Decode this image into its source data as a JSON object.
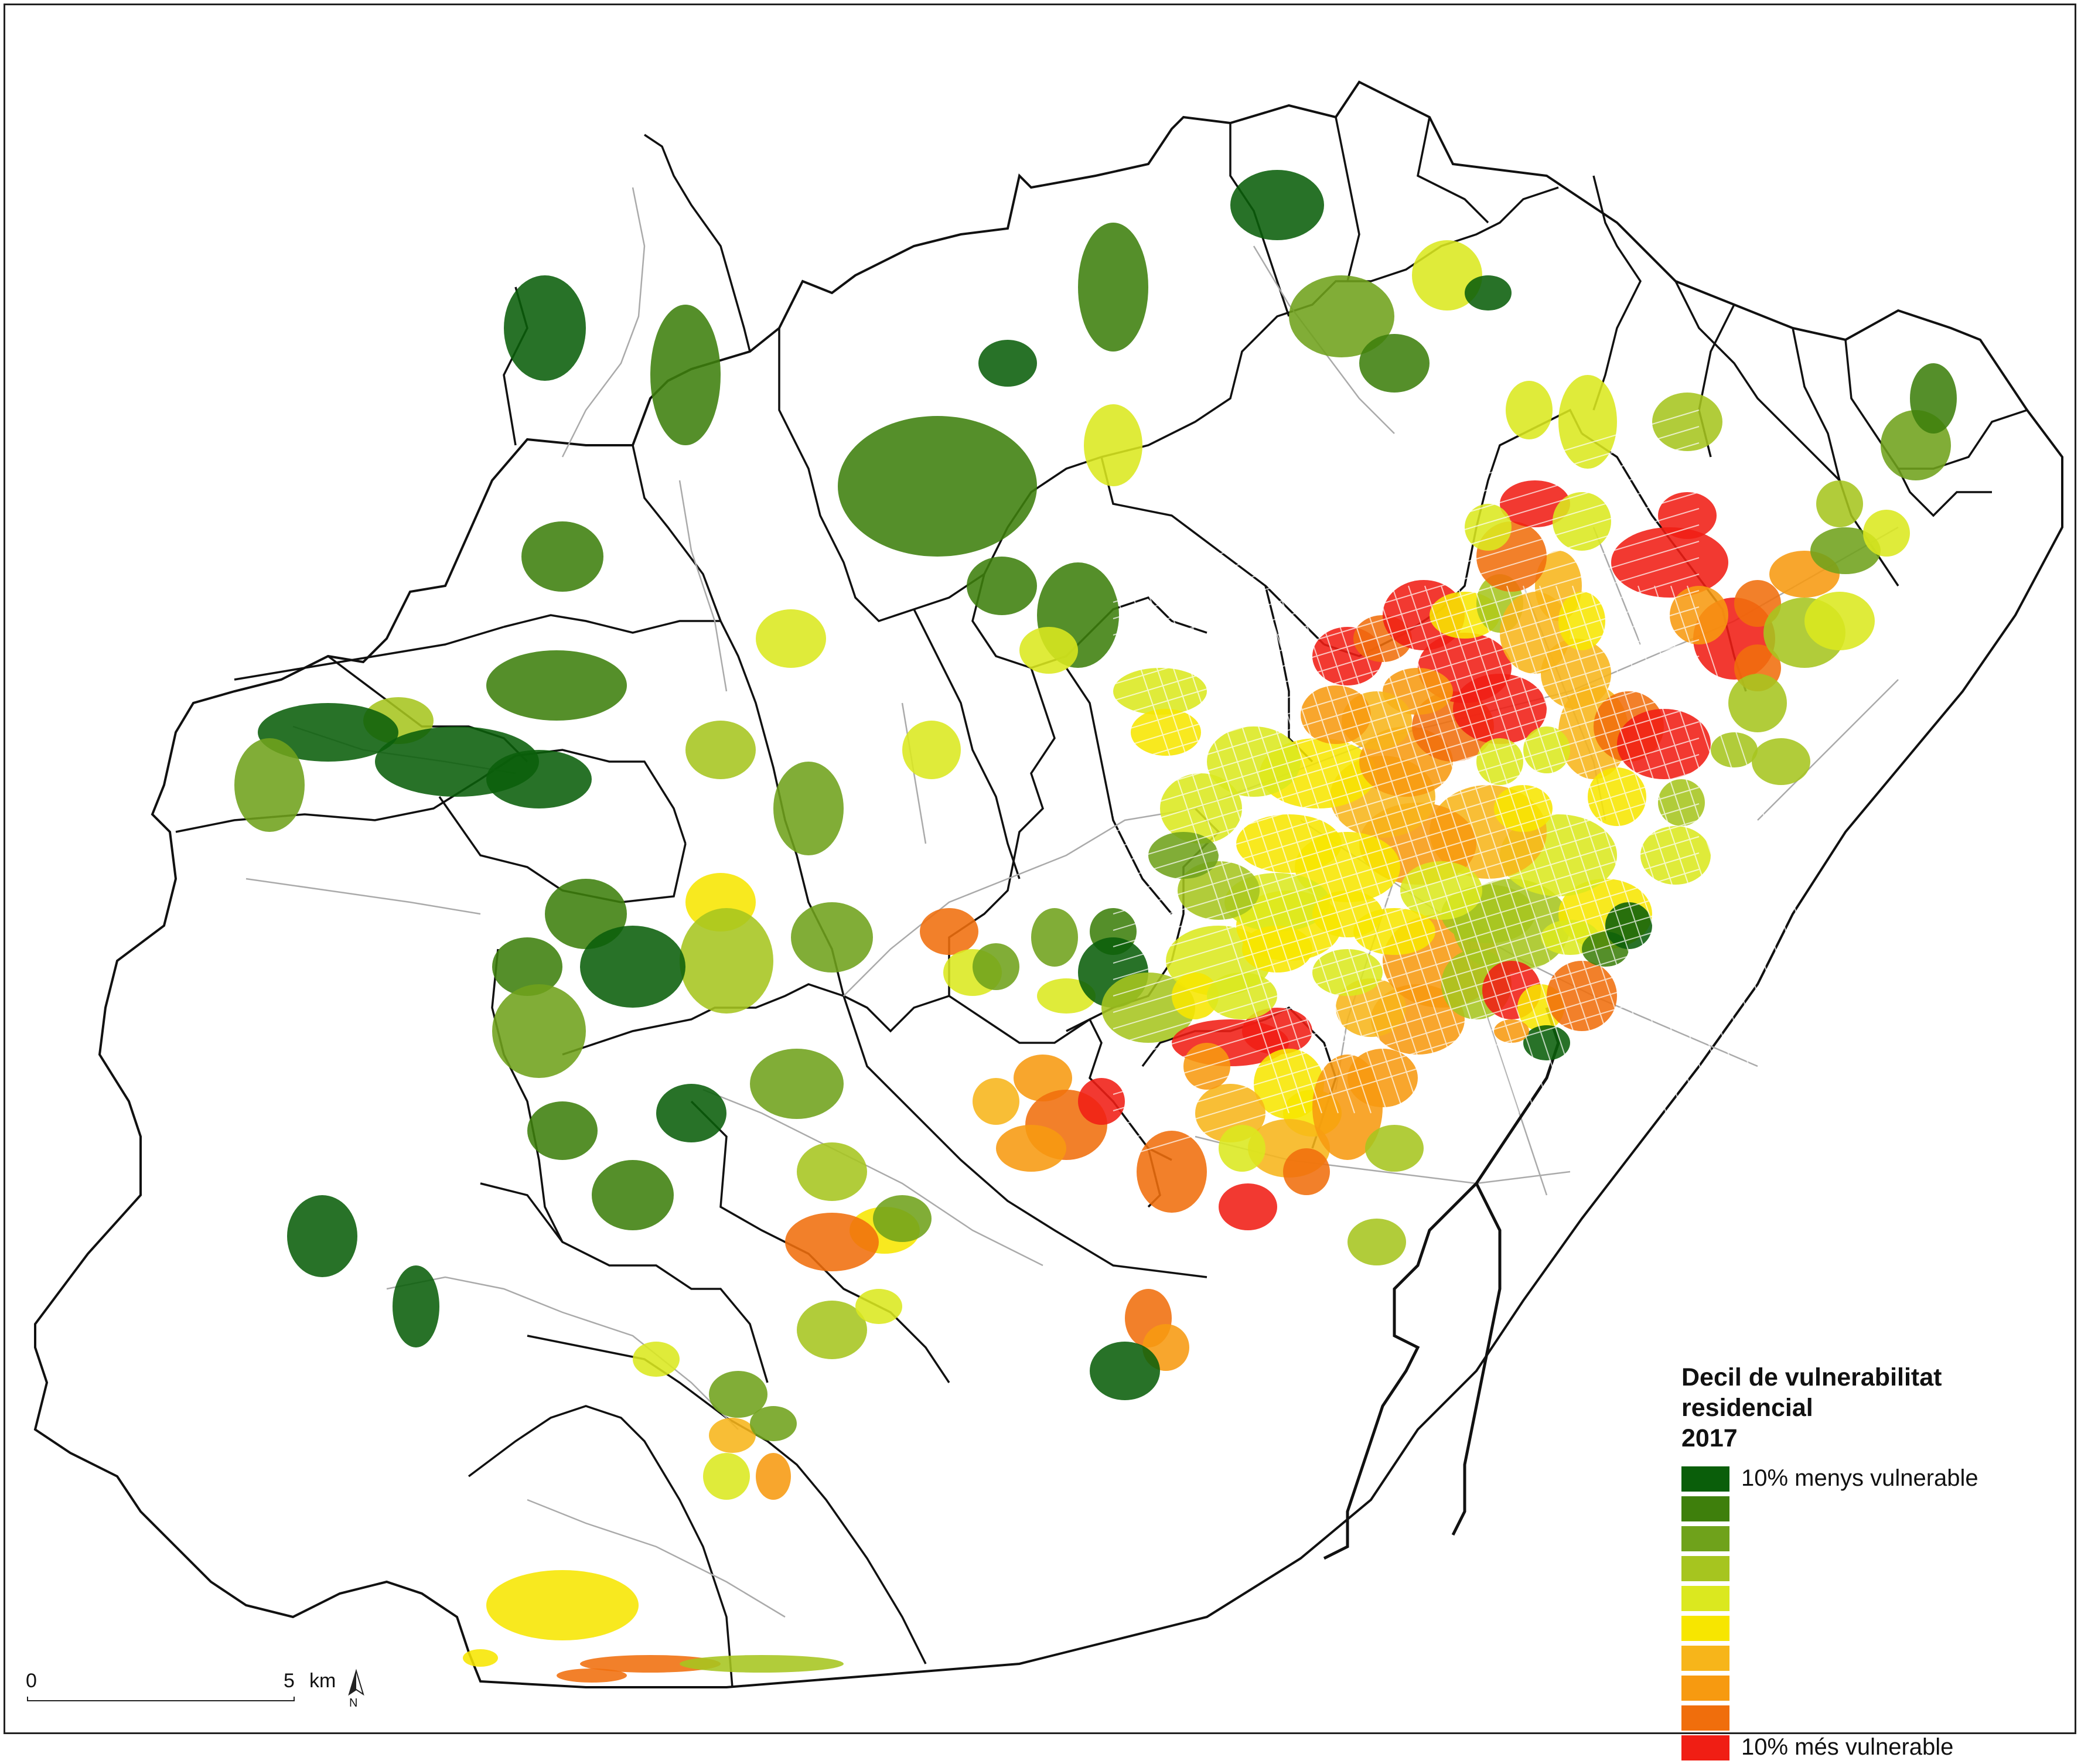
{
  "legend": {
    "title": "Decil de vulnerabilitat residencial",
    "year": "2017",
    "items": [
      {
        "decile": 1,
        "color": "#0a5e0a",
        "label": "10% menys vulnerable"
      },
      {
        "decile": 2,
        "color": "#3e7f0c",
        "label": ""
      },
      {
        "decile": 3,
        "color": "#6fa21b",
        "label": ""
      },
      {
        "decile": 4,
        "color": "#a6c51f",
        "label": ""
      },
      {
        "decile": 5,
        "color": "#dbe81f",
        "label": ""
      },
      {
        "decile": 6,
        "color": "#f7e600",
        "label": ""
      },
      {
        "decile": 7,
        "color": "#f7b51a",
        "label": ""
      },
      {
        "decile": 8,
        "color": "#f79a10",
        "label": ""
      },
      {
        "decile": 9,
        "color": "#f06e0c",
        "label": ""
      },
      {
        "decile": 10,
        "color": "#f01e14",
        "label": "10% més vulnerable"
      }
    ]
  },
  "scalebar": {
    "start": "0",
    "end": "5",
    "unit": "km"
  },
  "north_arrow": {
    "label": "N",
    "icon": "north-arrow-icon"
  },
  "colors": {
    "boundary": "#111111",
    "road": "#aaaaaa",
    "background": "#ffffff"
  }
}
